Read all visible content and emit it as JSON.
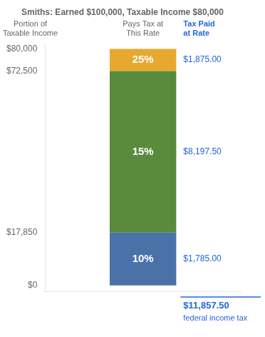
{
  "chart_data": {
    "type": "bar",
    "stacked": true,
    "title": "Smiths: Earned $100,000, Taxable Income $80,000",
    "categories": [
      null
    ],
    "series": [
      {
        "name": "10%",
        "color": "#4a72a8",
        "values": [
          17850
        ],
        "annotation": "$1,785.00"
      },
      {
        "name": "15%",
        "color": "#5a8a3c",
        "values": [
          54650
        ],
        "annotation": "$8,197.50"
      },
      {
        "name": "25%",
        "color": "#e8a830",
        "values": [
          7500
        ],
        "annotation": "$1,875.00"
      }
    ],
    "ylim": [
      -2000,
      81000
    ],
    "yticks": [
      {
        "value": 0,
        "label": "$0"
      },
      {
        "value": 17850,
        "label": "$17,850"
      },
      {
        "value": 72500,
        "label": "$72,500"
      },
      {
        "value": 80000,
        "label": "$80,000"
      }
    ],
    "grid": false,
    "tick_labels": "y",
    "column_headers": [
      "Portion of\nTaxable Income",
      "Pays Tax at\nThis Rate",
      "Tax Paid\nat Rate"
    ],
    "total_text": "$11,857.50",
    "total_sub": "federal income tax"
  }
}
